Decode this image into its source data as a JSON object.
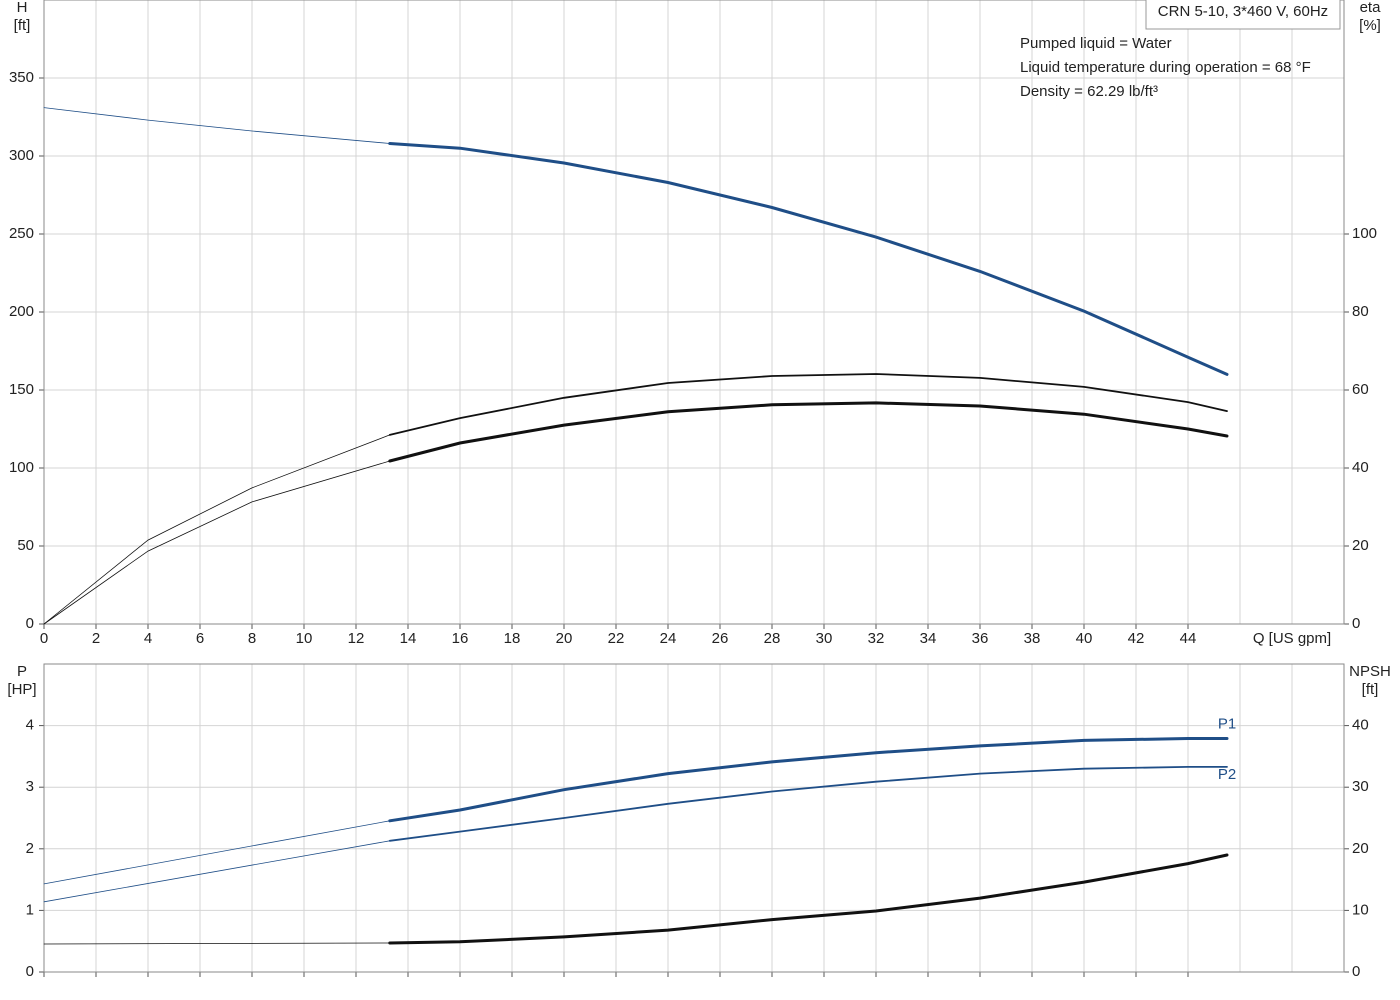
{
  "chart_data": [
    {
      "type": "line",
      "title": "CRN 5-10, 3*460 V, 60Hz",
      "annotations": [
        "Pumped liquid = Water",
        "Liquid temperature during operation = 68 °F",
        "Density = 62.29 lb/ft³"
      ],
      "ylabel": "H",
      "yunit": "[ft]",
      "y2label": "eta",
      "y2unit": "[%]",
      "xlabel": "Q [US gpm]",
      "xlim": [
        0,
        50
      ],
      "xticks": [
        0,
        2,
        4,
        6,
        8,
        10,
        12,
        14,
        16,
        18,
        20,
        22,
        24,
        26,
        28,
        30,
        32,
        34,
        36,
        38,
        40,
        42,
        44
      ],
      "xgrid": [
        46,
        48
      ],
      "show_xtick_labels": true,
      "ylim": [
        0,
        400
      ],
      "yticks": [
        0,
        50,
        100,
        150,
        200,
        250,
        300,
        350
      ],
      "y2lim": [
        0,
        160
      ],
      "y2ticks": [
        0,
        20,
        40,
        60,
        80,
        100
      ],
      "grid": true,
      "series": [
        {
          "color": "#1f4e87",
          "width": 0.8,
          "x": [
            0,
            4,
            8,
            13.3
          ],
          "values": [
            331,
            323,
            316,
            308
          ]
        },
        {
          "color": "#1f4e87",
          "width": 3,
          "x": [
            13.3,
            16,
            20,
            24,
            28,
            32,
            36,
            40,
            44,
            45.5
          ],
          "values": [
            308,
            305,
            295.5,
            283,
            267,
            248,
            226,
            200.6,
            171,
            160
          ]
        },
        {
          "color": "#111111",
          "width": 0.8,
          "axis": "y2",
          "x": [
            0,
            4,
            8,
            13.3
          ],
          "values": [
            0,
            21.5,
            34.9,
            48.5
          ]
        },
        {
          "color": "#111111",
          "width": 1.8,
          "axis": "y2",
          "x": [
            13.3,
            16,
            20,
            24,
            28,
            32,
            36,
            40,
            44,
            45.5
          ],
          "values": [
            48.5,
            52.8,
            58,
            61.8,
            63.6,
            64.1,
            63.1,
            60.8,
            56.9,
            54.6
          ]
        },
        {
          "color": "#111111",
          "width": 0.8,
          "axis": "y2",
          "x": [
            0,
            4,
            8,
            13.3
          ],
          "values": [
            0,
            18.7,
            31.3,
            41.8
          ]
        },
        {
          "color": "#111111",
          "width": 3,
          "axis": "y2",
          "x": [
            13.3,
            16,
            20,
            24,
            28,
            32,
            36,
            40,
            44,
            45.5
          ],
          "values": [
            41.8,
            46.4,
            51,
            54.4,
            56.2,
            56.7,
            55.9,
            53.8,
            50,
            48.2
          ]
        }
      ]
    },
    {
      "type": "line",
      "ylabel": "P",
      "yunit": "[HP]",
      "y2label": "NPSH",
      "y2unit": "[ft]",
      "xlim": [
        0,
        50
      ],
      "xticks": [
        0,
        2,
        4,
        6,
        8,
        10,
        12,
        14,
        16,
        18,
        20,
        22,
        24,
        26,
        28,
        30,
        32,
        34,
        36,
        38,
        40,
        42,
        44
      ],
      "xgrid": [
        46,
        48
      ],
      "show_xtick_labels": false,
      "ylim": [
        0,
        5
      ],
      "yticks": [
        0,
        1,
        2,
        3,
        4
      ],
      "y2lim": [
        0,
        50
      ],
      "y2ticks": [
        0,
        10,
        20,
        30,
        40
      ],
      "grid": true,
      "series": [
        {
          "color": "#1f4e87",
          "width": 0.8,
          "x": [
            0,
            13.3
          ],
          "values": [
            1.43,
            2.455
          ]
        },
        {
          "name": "P1",
          "color": "#1f4e87",
          "width": 3,
          "x": [
            13.3,
            16,
            20,
            24,
            28,
            32,
            36,
            40,
            44,
            45.5
          ],
          "values": [
            2.455,
            2.63,
            2.96,
            3.22,
            3.41,
            3.56,
            3.67,
            3.76,
            3.79,
            3.79
          ]
        },
        {
          "color": "#1f4e87",
          "width": 0.8,
          "x": [
            0,
            13.3
          ],
          "values": [
            1.14,
            2.13
          ]
        },
        {
          "name": "P2",
          "color": "#1f4e87",
          "width": 1.8,
          "x": [
            13.3,
            16,
            20,
            24,
            28,
            32,
            36,
            40,
            44,
            45.5
          ],
          "values": [
            2.13,
            2.28,
            2.5,
            2.73,
            2.93,
            3.09,
            3.22,
            3.3,
            3.33,
            3.33
          ]
        },
        {
          "color": "#111111",
          "width": 0.8,
          "axis": "y2",
          "x": [
            0,
            13.3
          ],
          "values": [
            4.55,
            4.7
          ]
        },
        {
          "color": "#111111",
          "width": 3,
          "axis": "y2",
          "x": [
            13.3,
            16,
            20,
            24,
            28,
            32,
            36,
            40,
            44,
            45.5
          ],
          "values": [
            4.7,
            4.9,
            5.7,
            6.8,
            8.5,
            9.9,
            12,
            14.6,
            17.6,
            19
          ]
        }
      ]
    }
  ]
}
